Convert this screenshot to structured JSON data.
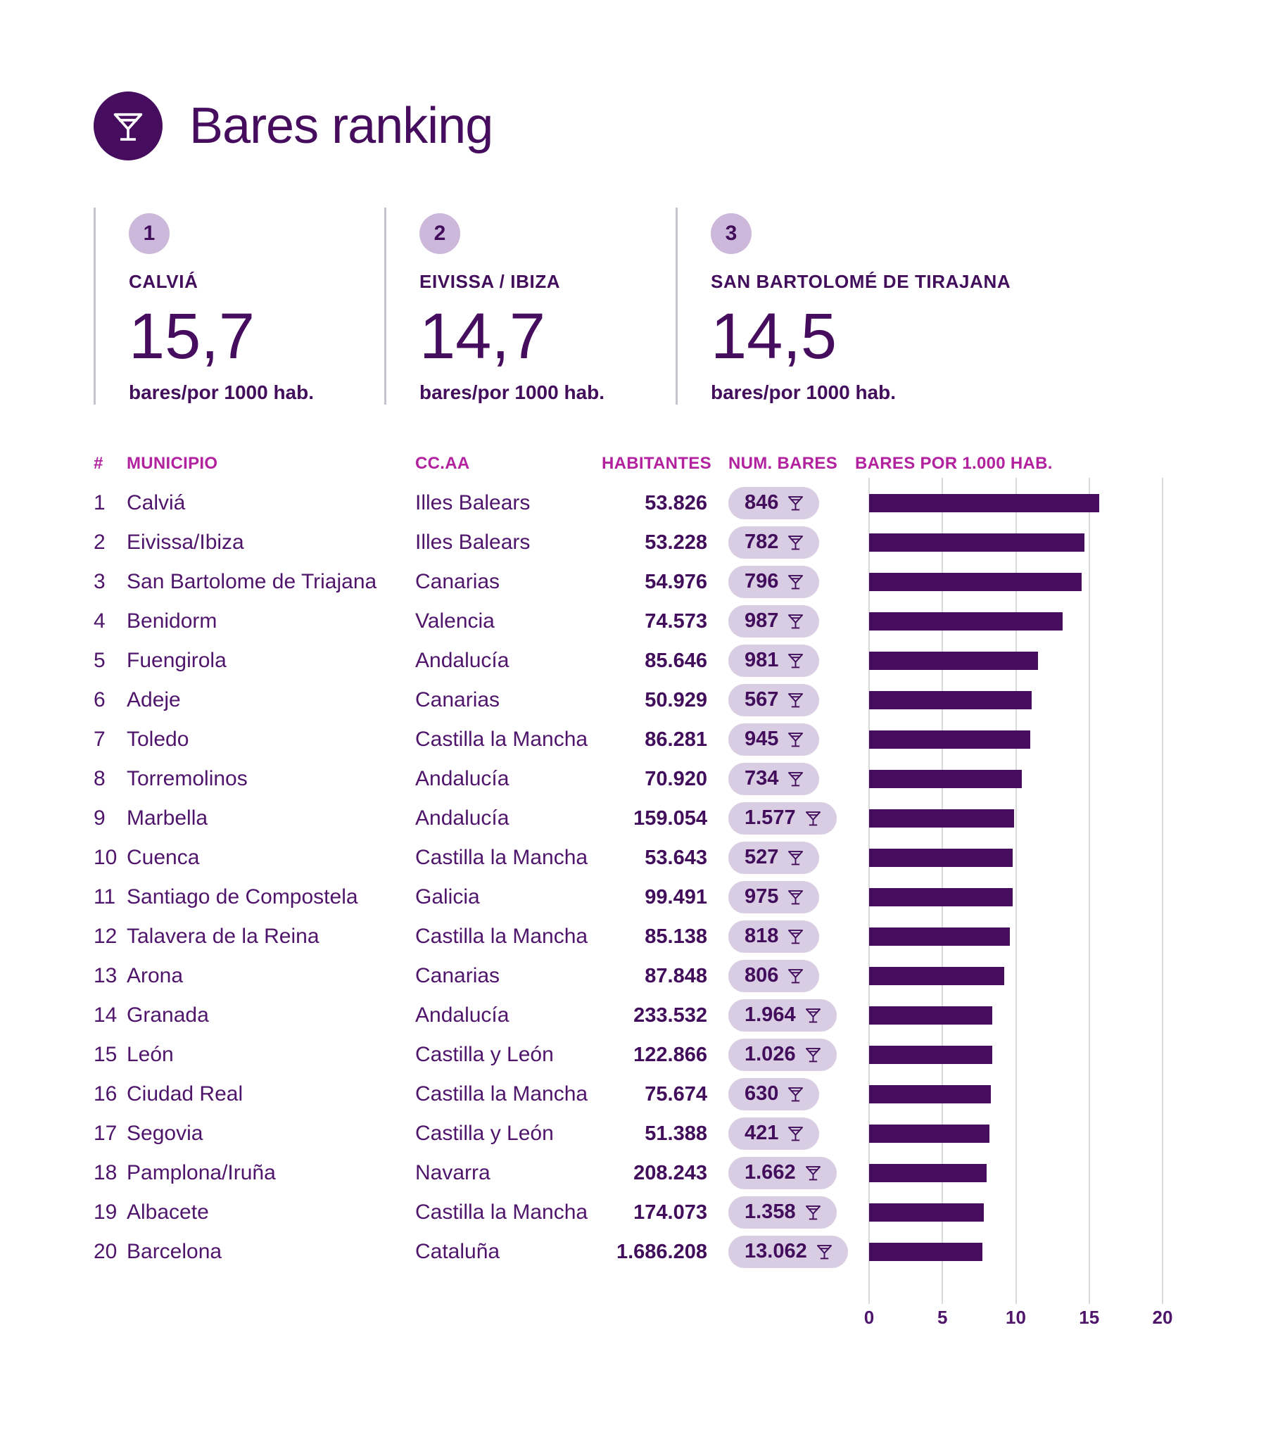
{
  "page": {
    "title": "Bares ranking"
  },
  "top_cards": [
    {
      "rank": "1",
      "name": "CALVIÁ",
      "value": "15,7",
      "unit": "bares/por 1000 hab."
    },
    {
      "rank": "2",
      "name": "EIVISSA / IBIZA",
      "value": "14,7",
      "unit": "bares/por 1000 hab."
    },
    {
      "rank": "3",
      "name": "SAN BARTOLOMÉ DE TIRAJANA",
      "value": "14,5",
      "unit": "bares/por 1000 hab."
    }
  ],
  "table": {
    "headers": {
      "rank": "#",
      "municipio": "MUNICIPIO",
      "ccaa": "CC.AA",
      "habitantes": "HABITANTES",
      "num_bares": "NUM. BARES",
      "bares_por_mil": "BARES POR 1.000 HAB."
    },
    "rows": [
      {
        "rank": "1",
        "municipio": "Calviá",
        "ccaa": "Illes Balears",
        "habitantes": "53.826",
        "num_bares": "846"
      },
      {
        "rank": "2",
        "municipio": "Eivissa/Ibiza",
        "ccaa": "Illes Balears",
        "habitantes": "53.228",
        "num_bares": "782"
      },
      {
        "rank": "3",
        "municipio": "San Bartolome de Triajana",
        "ccaa": "Canarias",
        "habitantes": "54.976",
        "num_bares": "796"
      },
      {
        "rank": "4",
        "municipio": "Benidorm",
        "ccaa": "Valencia",
        "habitantes": "74.573",
        "num_bares": "987"
      },
      {
        "rank": "5",
        "municipio": "Fuengirola",
        "ccaa": "Andalucía",
        "habitantes": "85.646",
        "num_bares": "981"
      },
      {
        "rank": "6",
        "municipio": "Adeje",
        "ccaa": "Canarias",
        "habitantes": "50.929",
        "num_bares": "567"
      },
      {
        "rank": "7",
        "municipio": "Toledo",
        "ccaa": "Castilla la Mancha",
        "habitantes": "86.281",
        "num_bares": "945"
      },
      {
        "rank": "8",
        "municipio": "Torremolinos",
        "ccaa": "Andalucía",
        "habitantes": "70.920",
        "num_bares": "734"
      },
      {
        "rank": "9",
        "municipio": "Marbella",
        "ccaa": "Andalucía",
        "habitantes": "159.054",
        "num_bares": "1.577"
      },
      {
        "rank": "10",
        "municipio": "Cuenca",
        "ccaa": "Castilla la Mancha",
        "habitantes": "53.643",
        "num_bares": "527"
      },
      {
        "rank": "11",
        "municipio": "Santiago de Compostela",
        "ccaa": "Galicia",
        "habitantes": "99.491",
        "num_bares": "975"
      },
      {
        "rank": "12",
        "municipio": "Talavera de la Reina",
        "ccaa": "Castilla la Mancha",
        "habitantes": "85.138",
        "num_bares": "818"
      },
      {
        "rank": "13",
        "municipio": "Arona",
        "ccaa": "Canarias",
        "habitantes": "87.848",
        "num_bares": "806"
      },
      {
        "rank": "14",
        "municipio": "Granada",
        "ccaa": "Andalucía",
        "habitantes": "233.532",
        "num_bares": "1.964"
      },
      {
        "rank": "15",
        "municipio": "León",
        "ccaa": "Castilla y León",
        "habitantes": "122.866",
        "num_bares": "1.026"
      },
      {
        "rank": "16",
        "municipio": "Ciudad Real",
        "ccaa": "Castilla la Mancha",
        "habitantes": "75.674",
        "num_bares": "630"
      },
      {
        "rank": "17",
        "municipio": "Segovia",
        "ccaa": "Castilla y León",
        "habitantes": "51.388",
        "num_bares": "421"
      },
      {
        "rank": "18",
        "municipio": "Pamplona/Iruña",
        "ccaa": "Navarra",
        "habitantes": "208.243",
        "num_bares": "1.662"
      },
      {
        "rank": "19",
        "municipio": "Albacete",
        "ccaa": "Castilla la Mancha",
        "habitantes": "174.073",
        "num_bares": "1.358"
      },
      {
        "rank": "20",
        "municipio": "Barcelona",
        "ccaa": "Cataluña",
        "habitantes": "1.686.208",
        "num_bares": "13.062"
      }
    ]
  },
  "chart_data": {
    "type": "bar",
    "orientation": "horizontal",
    "title": "BARES POR 1.000 HAB.",
    "categories": [
      "Calviá",
      "Eivissa/Ibiza",
      "San Bartolome de Triajana",
      "Benidorm",
      "Fuengirola",
      "Adeje",
      "Toledo",
      "Torremolinos",
      "Marbella",
      "Cuenca",
      "Santiago de Compostela",
      "Talavera de la Reina",
      "Arona",
      "Granada",
      "León",
      "Ciudad Real",
      "Segovia",
      "Pamplona/Iruña",
      "Albacete",
      "Barcelona"
    ],
    "values": [
      15.7,
      14.7,
      14.5,
      13.2,
      11.5,
      11.1,
      11.0,
      10.4,
      9.9,
      9.8,
      9.8,
      9.6,
      9.2,
      8.4,
      8.4,
      8.3,
      8.2,
      8.0,
      7.8,
      7.7
    ],
    "xlim": [
      0,
      20
    ],
    "xticks": [
      0,
      5,
      10,
      15,
      20
    ],
    "grid": true,
    "bar_color": "#460d5f"
  },
  "colors": {
    "dark_purple": "#460d5f",
    "ink": "#420e5c",
    "text_purple": "#4f156b",
    "magenta": "#b2219e",
    "pill_bg": "#d9cde4",
    "circle_bg": "#ccb8db",
    "gridline": "#d9d9d9",
    "divider": "#c6c3cc"
  }
}
